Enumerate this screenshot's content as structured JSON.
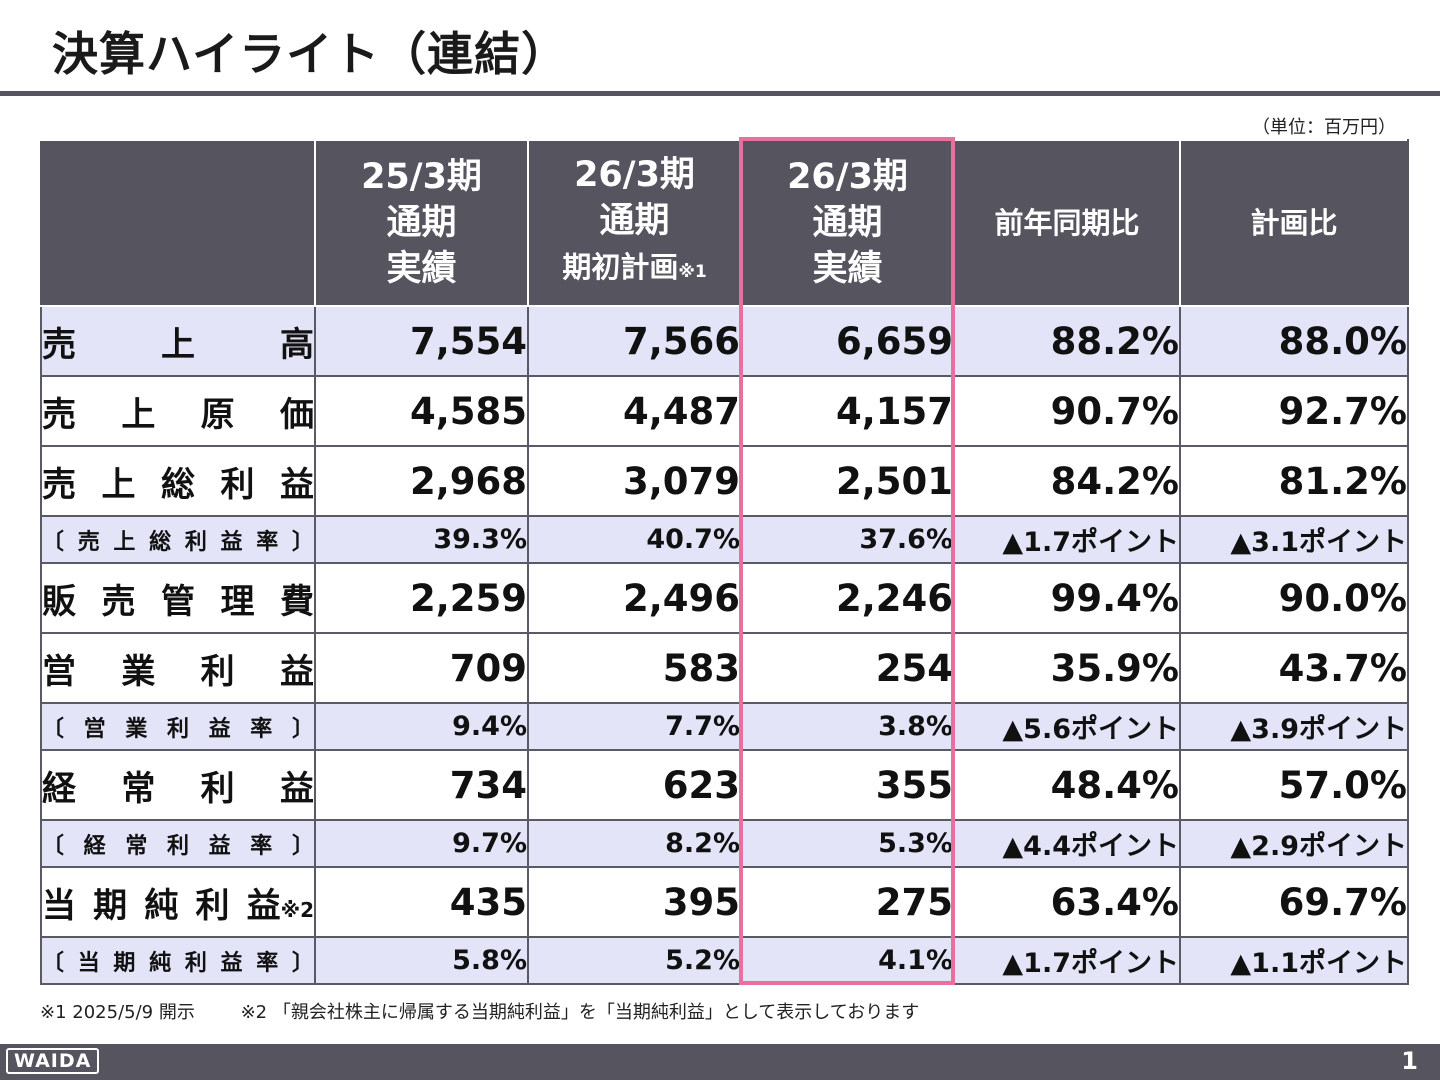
{
  "title": "決算ハイライト（連結）",
  "unit": "（単位：百万円）",
  "headers": [
    {
      "lines": [
        "25/3期",
        "通期",
        "実績"
      ]
    },
    {
      "lines": [
        "26/3期",
        "通期",
        "期初計画"
      ],
      "sup": "※1"
    },
    {
      "lines": [
        "26/3期",
        "通期",
        "実績"
      ]
    },
    {
      "lines": [
        "前年同期比"
      ]
    },
    {
      "lines": [
        "計画比"
      ]
    }
  ],
  "rows": [
    {
      "label": "売上高",
      "values": [
        "7,554",
        "7,566",
        "6,659",
        "88.2%",
        "88.0%"
      ]
    },
    {
      "label": "売上原価",
      "values": [
        "4,585",
        "4,487",
        "4,157",
        "90.7%",
        "92.7%"
      ]
    },
    {
      "label": "売上総利益",
      "values": [
        "2,968",
        "3,079",
        "2,501",
        "84.2%",
        "81.2%"
      ]
    },
    {
      "label": "〔売上総利益率〕",
      "values": [
        "39.3%",
        "40.7%",
        "37.6%",
        "▲1.7ポイント",
        "▲3.1ポイント"
      ]
    },
    {
      "label": "販売管理費",
      "values": [
        "2,259",
        "2,496",
        "2,246",
        "99.4%",
        "90.0%"
      ]
    },
    {
      "label": "営業利益",
      "values": [
        "709",
        "583",
        "254",
        "35.9%",
        "43.7%"
      ]
    },
    {
      "label": "〔営業利益率〕",
      "values": [
        "9.4%",
        "7.7%",
        "3.8%",
        "▲5.6ポイント",
        "▲3.9ポイント"
      ]
    },
    {
      "label": "経常利益",
      "values": [
        "734",
        "623",
        "355",
        "48.4%",
        "57.0%"
      ]
    },
    {
      "label": "〔経常利益率〕",
      "values": [
        "9.7%",
        "8.2%",
        "5.3%",
        "▲4.4ポイント",
        "▲2.9ポイント"
      ]
    },
    {
      "label": "当期純利益",
      "label_sup": "※2",
      "values": [
        "435",
        "395",
        "275",
        "63.4%",
        "69.7%"
      ]
    },
    {
      "label": "〔当期純利益率〕",
      "values": [
        "5.8%",
        "5.2%",
        "4.1%",
        "▲1.7ポイント",
        "▲1.1ポイント"
      ]
    }
  ],
  "footnotes": [
    "※1  2025/5/9 開示",
    "※2 「親会社株主に帰属する当期純利益」を「当期純利益」として表示しております"
  ],
  "logo": "WAIDA",
  "page_number": "1",
  "colors": {
    "header_bg": "#55545f",
    "band_bg": "#e3e4f8",
    "highlight": "#e8709e"
  }
}
